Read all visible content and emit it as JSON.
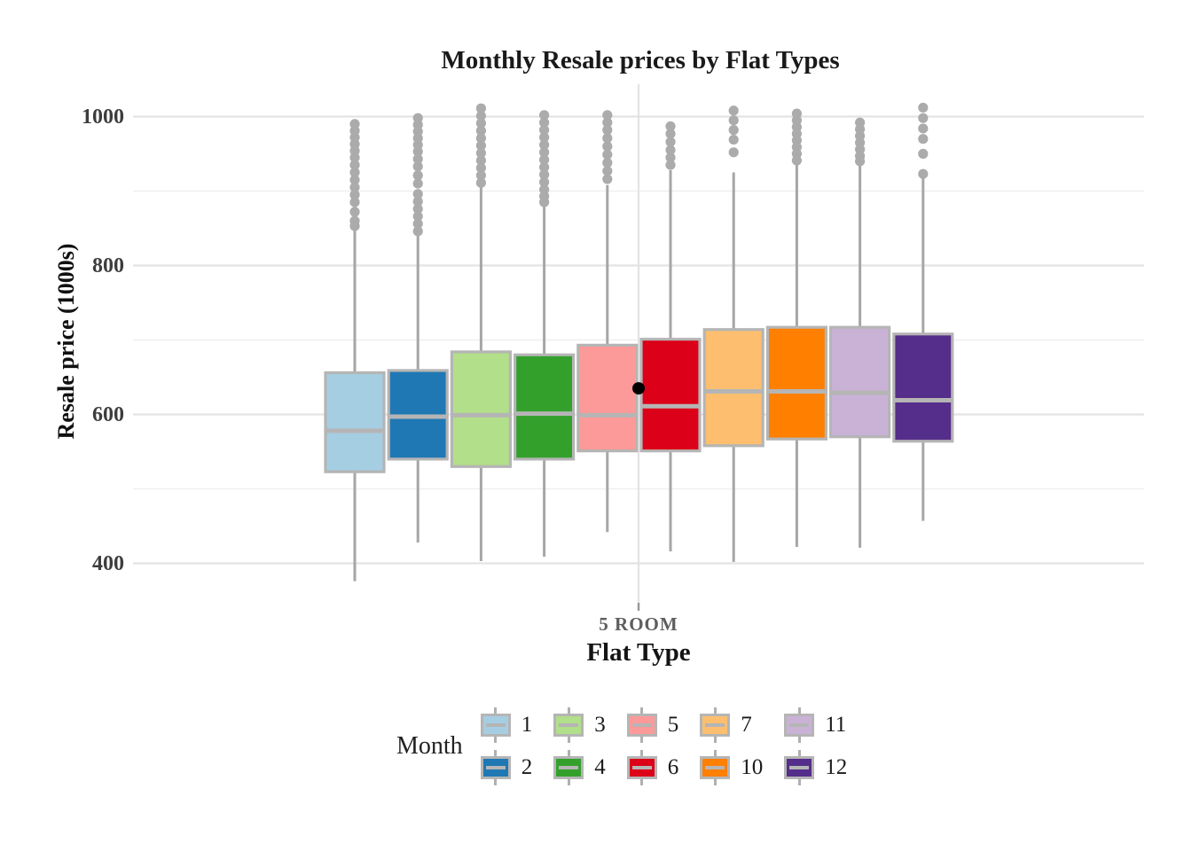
{
  "chart_data": {
    "type": "boxplot",
    "title": "Monthly Resale prices by Flat Types",
    "xlabel": "Flat Type",
    "ylabel": "Resale price (1000s)",
    "category": "5 ROOM",
    "ylim": [
      347,
      1043
    ],
    "yticks": [
      400,
      600,
      800,
      1000
    ],
    "yticks_minor": [
      500,
      700,
      900
    ],
    "grid": "horizontal major and minor lines; one vertical major line at category center",
    "legend": {
      "title": "Month",
      "position": "bottom"
    },
    "mean_point": {
      "category": "5 ROOM",
      "value": 635,
      "color": "#000000"
    },
    "series": [
      {
        "month": "1",
        "color": "#a6cee3",
        "whisker_low": 376,
        "q1": 523,
        "median": 578,
        "q3": 656,
        "whisker_high": 849,
        "outliers": [
          853,
          860,
          872,
          885,
          895,
          905,
          915,
          925,
          935,
          945,
          954,
          963,
          972,
          981,
          990
        ]
      },
      {
        "month": "2",
        "color": "#1f78b4",
        "whisker_low": 428,
        "q1": 540,
        "median": 597,
        "q3": 659,
        "whisker_high": 843,
        "outliers": [
          846,
          856,
          866,
          876,
          886,
          896,
          910,
          921,
          933,
          943,
          953,
          962,
          971,
          980,
          989,
          998
        ]
      },
      {
        "month": "3",
        "color": "#b2df8a",
        "whisker_low": 403,
        "q1": 530,
        "median": 599,
        "q3": 684,
        "whisker_high": 908,
        "outliers": [
          911,
          921,
          931,
          941,
          951,
          961,
          971,
          981,
          991,
          1001,
          1011
        ]
      },
      {
        "month": "4",
        "color": "#33a02c",
        "whisker_low": 409,
        "q1": 540,
        "median": 601,
        "q3": 680,
        "whisker_high": 884,
        "outliers": [
          885,
          893,
          902,
          912,
          922,
          932,
          942,
          952,
          962,
          972,
          982,
          992,
          1002
        ]
      },
      {
        "month": "5",
        "color": "#fb9a99",
        "whisker_low": 442,
        "q1": 551,
        "median": 599,
        "q3": 693,
        "whisker_high": 908,
        "outliers": [
          916,
          927,
          938,
          949,
          960,
          971,
          982,
          992,
          1002
        ]
      },
      {
        "month": "6",
        "color": "#dc0018",
        "whisker_low": 416,
        "q1": 551,
        "median": 611,
        "q3": 701,
        "whisker_high": 928,
        "outliers": [
          935,
          945,
          955,
          966,
          977,
          987
        ]
      },
      {
        "month": "7",
        "color": "#fdbf6f",
        "whisker_low": 402,
        "q1": 558,
        "median": 631,
        "q3": 714,
        "whisker_high": 925,
        "outliers": [
          952,
          969,
          982,
          995,
          1008
        ]
      },
      {
        "month": "10",
        "color": "#ff7f00",
        "whisker_low": 422,
        "q1": 567,
        "median": 631,
        "q3": 717,
        "whisker_high": 938,
        "outliers": [
          941,
          950,
          959,
          968,
          977,
          986,
          995,
          1004
        ]
      },
      {
        "month": "11",
        "color": "#cab2d6",
        "whisker_low": 421,
        "q1": 570,
        "median": 629,
        "q3": 717,
        "whisker_high": 938,
        "outliers": [
          940,
          947,
          956,
          965,
          974,
          983,
          992
        ]
      },
      {
        "month": "12",
        "color": "#552d8a",
        "whisker_low": 457,
        "q1": 564,
        "median": 619,
        "q3": 708,
        "whisker_high": 920,
        "outliers": [
          923,
          950,
          970,
          984,
          998,
          1012
        ]
      }
    ]
  },
  "style": {
    "box_border": "#b5b5b5",
    "median_line": "#b5b5b5",
    "whisker": "#a6a6a6",
    "outlier_dot": "#ababab",
    "grid_major": "#e3e3e3",
    "grid_minor": "#efefef",
    "axis_tick_mark": "#9a9a9a",
    "tick_label": "#3d3d3d",
    "category_label": "#5e5e5e",
    "text": "#1a1a1a"
  }
}
